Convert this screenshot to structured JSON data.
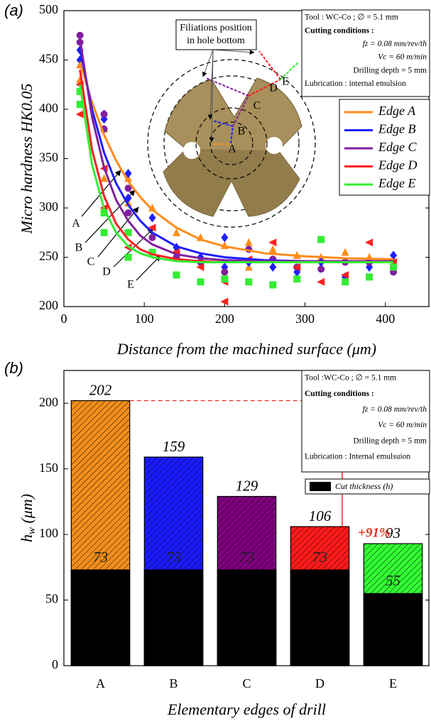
{
  "chart_data": [
    {
      "type": "scatter",
      "panel_label": "(a)",
      "xlabel": "Distance from the machined surface (μm)",
      "ylabel": "Micro hardness HK0.05",
      "xlim": [
        0,
        455
      ],
      "ylim": [
        200,
        500
      ],
      "xticks": [
        0,
        100,
        200,
        300,
        400
      ],
      "yticks": [
        200,
        250,
        300,
        350,
        400,
        450,
        500
      ],
      "legend": "upper right",
      "fit_x": [
        20,
        35,
        50,
        65,
        80,
        95,
        110,
        140,
        170,
        200,
        250,
        300,
        350,
        410
      ],
      "series": [
        {
          "name": "Edge A",
          "color": "#ff8c1a",
          "marker": "triangle",
          "x": [
            20,
            20,
            50,
            50,
            80,
            80,
            110,
            140,
            140,
            170,
            200,
            230,
            230,
            260,
            290,
            320,
            350,
            380,
            410
          ],
          "values": [
            445,
            430,
            380,
            330,
            330,
            305,
            300,
            275,
            258,
            270,
            262,
            265,
            240,
            258,
            252,
            250,
            255,
            250,
            248
          ],
          "fit": [
            448,
            407,
            374,
            348,
            327,
            311,
            298,
            280,
            268,
            261,
            254,
            251,
            249,
            248
          ]
        },
        {
          "name": "Edge B",
          "color": "#1f1fff",
          "marker": "diamond",
          "x": [
            20,
            20,
            50,
            50,
            80,
            80,
            110,
            140,
            170,
            200,
            200,
            230,
            260,
            290,
            320,
            350,
            380,
            410
          ],
          "values": [
            460,
            450,
            395,
            390,
            335,
            310,
            290,
            260,
            250,
            270,
            240,
            245,
            240,
            235,
            245,
            230,
            240,
            252
          ],
          "fit": [
            461,
            400,
            356,
            325,
            303,
            287,
            275,
            261,
            254,
            250,
            247,
            246,
            246,
            246
          ]
        },
        {
          "name": "Edge C",
          "color": "#80209f",
          "marker": "circle",
          "x": [
            20,
            20,
            50,
            50,
            80,
            80,
            110,
            140,
            170,
            200,
            230,
            260,
            290,
            320,
            350,
            380,
            410
          ],
          "values": [
            475,
            468,
            395,
            380,
            320,
            295,
            270,
            250,
            245,
            235,
            258,
            248,
            240,
            238,
            245,
            245,
            235
          ],
          "fit": [
            471,
            392,
            341,
            308,
            287,
            272,
            263,
            253,
            249,
            247,
            246,
            246,
            246,
            246
          ]
        },
        {
          "name": "Edge D",
          "color": "#ff2020",
          "marker": "left-triangle",
          "x": [
            20,
            20,
            50,
            50,
            80,
            80,
            110,
            140,
            170,
            200,
            200,
            230,
            260,
            290,
            320,
            350,
            380,
            410
          ],
          "values": [
            425,
            395,
            340,
            300,
            275,
            260,
            280,
            255,
            240,
            225,
            205,
            248,
            265,
            240,
            225,
            232,
            265,
            245
          ],
          "fit": [
            440,
            359,
            312,
            284,
            268,
            258,
            253,
            248,
            246,
            245,
            245,
            245,
            245,
            245
          ]
        },
        {
          "name": "Edge E",
          "color": "#33ee33",
          "marker": "square",
          "x": [
            20,
            20,
            50,
            50,
            80,
            80,
            110,
            140,
            170,
            200,
            230,
            260,
            290,
            320,
            350,
            380,
            410
          ],
          "values": [
            418,
            405,
            295,
            275,
            275,
            250,
            255,
            232,
            225,
            228,
            225,
            222,
            228,
            268,
            225,
            230,
            240
          ],
          "fit": [
            425,
            344,
            299,
            275,
            261,
            254,
            250,
            246,
            245,
            245,
            245,
            245,
            245,
            245
          ]
        }
      ],
      "curve_labels": [
        "A",
        "B",
        "C",
        "D",
        "E"
      ],
      "callout": [
        "Filiations position",
        "in hole bottom"
      ],
      "drill_labels": [
        "A",
        "B",
        "C",
        "D",
        "E"
      ],
      "info_box": [
        "Tool : WC-Co ; ∅ = 5.1 mm",
        "Cutting conditions :",
        "fz = 0.08 mm/rev/th",
        "Vc = 60 m/min",
        "Drilling depth = 5 mm",
        "Lubrication : internal emulsion"
      ]
    },
    {
      "type": "bar",
      "panel_label": "(b)",
      "xlabel": "Elementary edges of drill",
      "ylabel": {
        "symbol": "h",
        "subscript": "w",
        "unit": " (μm)"
      },
      "categories": [
        "A",
        "B",
        "C",
        "D",
        "E"
      ],
      "ylim": [
        0,
        225
      ],
      "yticks": [
        0,
        50,
        100,
        150,
        200
      ],
      "series": [
        {
          "colors": [
            "#f28e1c",
            "#1a1aff",
            "#800080",
            "#ff1a1a",
            "#33ff33"
          ],
          "hatch": true,
          "values": [
            202,
            159,
            129,
            106,
            93
          ]
        },
        {
          "name": "Cut thickness (h)",
          "color": "#000000",
          "values": [
            73,
            73,
            73,
            73,
            55
          ]
        }
      ],
      "annotation": "+91%",
      "info_box": [
        "Tool :WC-Co ; ∅ = 5.1 mm",
        "Cutting conditions :",
        "fz = 0.08 mm/rev/th",
        "Vc = 60 m/min",
        "Drilling depth = 5 mm",
        "Lubrication : Internal emulsuion"
      ]
    }
  ]
}
